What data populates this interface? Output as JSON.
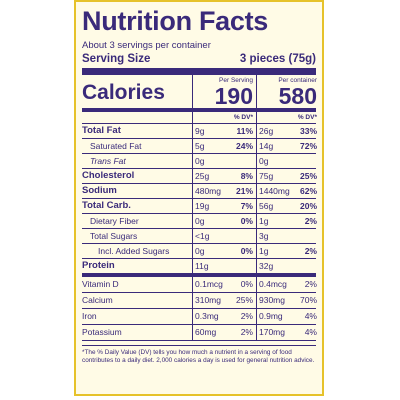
{
  "title": "Nutrition Facts",
  "servings_per_container": "About 3 servings per container",
  "serving_size_label": "Serving Size",
  "serving_size_value": "3 pieces (75g)",
  "calories_label": "Calories",
  "per_serving_header": "Per Serving",
  "per_container_header": "Per container",
  "calories_serving": "190",
  "calories_container": "580",
  "dv_header": "% DV*",
  "nutrients": [
    {
      "name": "Total Fat",
      "serving_amount": "9g",
      "serving_dv": "11%",
      "container_amount": "26g",
      "container_dv": "33%"
    },
    {
      "name": "Saturated Fat",
      "serving_amount": "5g",
      "serving_dv": "24%",
      "container_amount": "14g",
      "container_dv": "72%"
    },
    {
      "name": "Trans Fat",
      "serving_amount": "0g",
      "serving_dv": "",
      "container_amount": "0g",
      "container_dv": ""
    },
    {
      "name": "Cholesterol",
      "serving_amount": "25g",
      "serving_dv": "8%",
      "container_amount": "75g",
      "container_dv": "25%"
    },
    {
      "name": "Sodium",
      "serving_amount": "480mg",
      "serving_dv": "21%",
      "container_amount": "1440mg",
      "container_dv": "62%"
    },
    {
      "name": "Total Carb.",
      "serving_amount": "19g",
      "serving_dv": "7%",
      "container_amount": "56g",
      "container_dv": "20%"
    },
    {
      "name": "Dietary Fiber",
      "serving_amount": "0g",
      "serving_dv": "0%",
      "container_amount": "1g",
      "container_dv": "2%"
    },
    {
      "name": "Total Sugars",
      "serving_amount": "<1g",
      "serving_dv": "",
      "container_amount": "3g",
      "container_dv": ""
    },
    {
      "name": "Incl. Added Sugars",
      "serving_amount": "0g",
      "serving_dv": "0%",
      "container_amount": "1g",
      "container_dv": "2%"
    },
    {
      "name": "Protein",
      "serving_amount": "11g",
      "serving_dv": "",
      "container_amount": "32g",
      "container_dv": ""
    }
  ],
  "vitamins": [
    {
      "name": "Vitamin D",
      "serving_amount": "0.1mcg",
      "serving_dv": "0%",
      "container_amount": "0.4mcg",
      "container_dv": "2%"
    },
    {
      "name": "Calcium",
      "serving_amount": "310mg",
      "serving_dv": "25%",
      "container_amount": "930mg",
      "container_dv": "70%"
    },
    {
      "name": "Iron",
      "serving_amount": "0.3mg",
      "serving_dv": "2%",
      "container_amount": "0.9mg",
      "container_dv": "4%"
    },
    {
      "name": "Potassium",
      "serving_amount": "60mg",
      "serving_dv": "2%",
      "container_amount": "170mg",
      "container_dv": "4%"
    }
  ],
  "footnote": "*The % Daily Value (DV) tells you how much a nutrient in a serving of food contributes to a daily diet. 2,000 calories a day is used for general nutrition advice.",
  "colors": {
    "text": "#3a2a7a",
    "panel_bg": "#fffbe6",
    "border": "#e6c22a"
  }
}
